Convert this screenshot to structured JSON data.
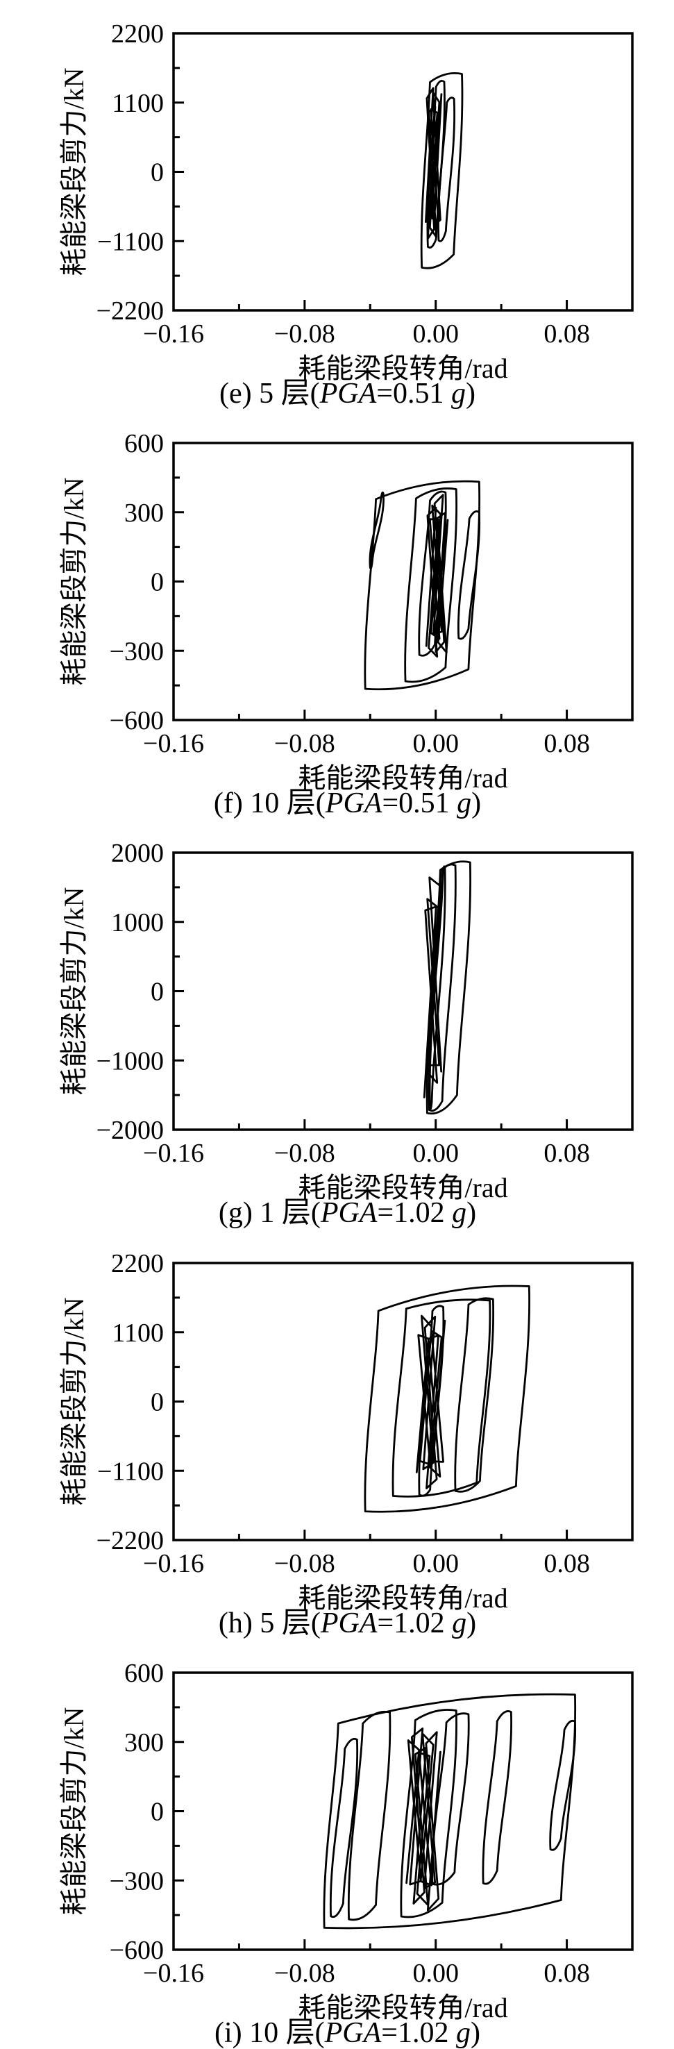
{
  "figure": {
    "bg_color": "#ffffff",
    "ink_color": "#000000",
    "description_note": "五幅耗能梁段滞回曲线图",
    "xlabel_shared": "耗能梁段转角/rad",
    "ylabel_shared": "耗能梁段剪力/kN"
  },
  "chart_data": [
    {
      "id": "e",
      "type": "line",
      "subtype": "hysteresis-loop",
      "panel": "(e)",
      "story": 5,
      "pga_g": 0.51,
      "caption_text": "(e) 5 层(PGA=0.51 g)",
      "caption_parts": [
        {
          "t": "(e) 5 层(",
          "i": false
        },
        {
          "t": "PGA",
          "i": true
        },
        {
          "t": "=0.51 ",
          "i": false
        },
        {
          "t": "g",
          "i": true
        },
        {
          "t": ")",
          "i": false
        }
      ],
      "xlabel": "耗能梁段转角/rad",
      "ylabel": "耗能梁段剪力/kN",
      "xlim": [
        -0.16,
        0.12
      ],
      "x_ticks": [
        -0.16,
        -0.08,
        0.0,
        0.08
      ],
      "x_tick_labels": [
        "−0.16",
        "−0.08",
        "0.00",
        "0.08"
      ],
      "x_minor_step": 0.04,
      "ylim": [
        -2200,
        2200
      ],
      "y_ticks": [
        2200,
        1100,
        0,
        -1100,
        -2200
      ],
      "y_tick_labels": [
        "2200",
        "1100",
        "0",
        "−1100",
        "−2200"
      ],
      "y_minor_step": 550,
      "grid": false,
      "legend": null,
      "line_color": "#000000",
      "loop_x_range": [
        -0.01,
        0.016
      ],
      "peak_shear_kN": {
        "max": 1555,
        "min": -1520
      },
      "lean": 0.005,
      "loops": [
        {
          "x0": -0.0085,
          "x1": 0.016,
          "yt": 1555,
          "yb": -1520,
          "dl": 130,
          "br": 210
        },
        {
          "x0": -0.0048,
          "x1": 0.0052,
          "yt": 1430,
          "yb": -1190,
          "dl": 80,
          "br": 120
        },
        {
          "x0": 0.0018,
          "x1": 0.0112,
          "yt": 1160,
          "yb": -1090,
          "dl": 60,
          "br": 150
        }
      ],
      "scribble": {
        "cx": -0.0013,
        "w": 0.005,
        "yt": 1330,
        "yb": -1130,
        "n": 9
      }
    },
    {
      "id": "f",
      "type": "line",
      "subtype": "hysteresis-loop",
      "panel": "(f)",
      "story": 10,
      "pga_g": 0.51,
      "caption_text": "(f) 10 层(PGA=0.51 g)",
      "caption_parts": [
        {
          "t": "(f) 10 层(",
          "i": false
        },
        {
          "t": "PGA",
          "i": true
        },
        {
          "t": "=0.51 ",
          "i": false
        },
        {
          "t": "g",
          "i": true
        },
        {
          "t": ")",
          "i": false
        }
      ],
      "xlabel": "耗能梁段转角/rad",
      "ylabel": "耗能梁段剪力/kN",
      "xlim": [
        -0.16,
        0.12
      ],
      "x_ticks": [
        -0.16,
        -0.08,
        0.0,
        0.08
      ],
      "x_tick_labels": [
        "−0.16",
        "−0.08",
        "0.00",
        "0.08"
      ],
      "x_minor_step": 0.04,
      "ylim": [
        -600,
        600
      ],
      "y_ticks": [
        600,
        300,
        0,
        -300,
        -600
      ],
      "y_tick_labels": [
        "600",
        "300",
        "0",
        "−300",
        "−600"
      ],
      "y_minor_step": 150,
      "grid": false,
      "legend": null,
      "line_color": "#000000",
      "loop_x_range": [
        -0.043,
        0.027
      ],
      "peak_shear_kN": {
        "max": 432,
        "min": -465
      },
      "lean": 0.0065,
      "loops": [
        {
          "x0": -0.043,
          "x1": 0.0265,
          "yt": 432,
          "yb": -465,
          "dl": 75,
          "br": 85
        },
        {
          "x0": -0.04,
          "x1": -0.032,
          "yt": 382,
          "yb": 60,
          "dl": 30,
          "br": 40
        },
        {
          "x0": -0.0185,
          "x1": 0.0125,
          "yt": 400,
          "yb": -432,
          "dl": 40,
          "br": 60
        },
        {
          "x0": -0.01,
          "x1": 0.006,
          "yt": 386,
          "yb": -318,
          "dl": 35,
          "br": 45
        },
        {
          "x0": 0.014,
          "x1": 0.0265,
          "yt": 300,
          "yb": -245,
          "dl": 28,
          "br": 40
        }
      ],
      "scribble": {
        "cx": 0.0008,
        "w": 0.0072,
        "yt": 380,
        "yb": -330,
        "n": 11
      }
    },
    {
      "id": "g",
      "type": "line",
      "subtype": "hysteresis-loop",
      "panel": "(g)",
      "story": 1,
      "pga_g": 1.02,
      "caption_text": "(g) 1 层(PGA=1.02 g)",
      "caption_parts": [
        {
          "t": "(g) 1 层(",
          "i": false
        },
        {
          "t": "PGA",
          "i": true
        },
        {
          "t": "=1.02 ",
          "i": false
        },
        {
          "t": "g",
          "i": true
        },
        {
          "t": ")",
          "i": false
        }
      ],
      "xlabel": "耗能梁段转角/rad",
      "ylabel": "耗能梁段剪力/kN",
      "xlim": [
        -0.16,
        0.12
      ],
      "x_ticks": [
        -0.16,
        -0.08,
        0.0,
        0.08
      ],
      "x_tick_labels": [
        "−0.16",
        "−0.08",
        "0.00",
        "0.08"
      ],
      "x_minor_step": 0.04,
      "ylim": [
        -2000,
        2000
      ],
      "y_ticks": [
        2000,
        1000,
        0,
        -1000,
        -2000
      ],
      "y_tick_labels": [
        "2000",
        "1000",
        "0",
        "−1000",
        "−2000"
      ],
      "y_minor_step": 500,
      "grid": false,
      "legend": null,
      "line_color": "#000000",
      "loop_x_range": [
        -0.005,
        0.021
      ],
      "peak_shear_kN": {
        "max": 1860,
        "min": -1760
      },
      "lean": 0.008,
      "loops": [
        {
          "x0": -0.0052,
          "x1": 0.021,
          "yt": 1860,
          "yb": -1760,
          "dl": 110,
          "br": 260
        },
        {
          "x0": -0.004,
          "x1": 0.012,
          "yt": 1815,
          "yb": -1715,
          "dl": 70,
          "br": 130
        },
        {
          "x0": -0.0035,
          "x1": 0.0056,
          "yt": 1785,
          "yb": -1685,
          "dl": 55,
          "br": 85
        }
      ],
      "scribble": {
        "cx": -0.0018,
        "w": 0.0032,
        "yt": 1690,
        "yb": -1580,
        "n": 6
      }
    },
    {
      "id": "h",
      "type": "line",
      "subtype": "hysteresis-loop",
      "panel": "(h)",
      "story": 5,
      "pga_g": 1.02,
      "caption_text": "(h) 5 层(PGA=1.02 g)",
      "caption_parts": [
        {
          "t": "(h) 5 层(",
          "i": false
        },
        {
          "t": "PGA",
          "i": true
        },
        {
          "t": "=1.02 ",
          "i": false
        },
        {
          "t": "g",
          "i": true
        },
        {
          "t": ")",
          "i": false
        }
      ],
      "xlabel": "耗能梁段转角/rad",
      "ylabel": "耗能梁段剪力/kN",
      "xlim": [
        -0.16,
        0.12
      ],
      "x_ticks": [
        -0.16,
        -0.08,
        0.0,
        0.08
      ],
      "x_tick_labels": [
        "−0.16",
        "−0.08",
        "0.00",
        "0.08"
      ],
      "x_minor_step": 0.04,
      "ylim": [
        -2200,
        2200
      ],
      "y_ticks": [
        2200,
        1100,
        0,
        -1100,
        -2200
      ],
      "y_tick_labels": [
        "2200",
        "1100",
        "0",
        "−1100",
        "−2200"
      ],
      "y_minor_step": 550,
      "grid": false,
      "legend": null,
      "line_color": "#000000",
      "loop_x_range": [
        -0.043,
        0.057
      ],
      "peak_shear_kN": {
        "max": 1830,
        "min": -1745
      },
      "lean": 0.008,
      "loops": [
        {
          "x0": -0.043,
          "x1": 0.057,
          "yt": 1830,
          "yb": -1745,
          "dl": 390,
          "br": 400
        },
        {
          "x0": -0.026,
          "x1": 0.033,
          "yt": 1605,
          "yb": -1500,
          "dl": 130,
          "br": 210
        },
        {
          "x0": -0.01,
          "x1": 0.0046,
          "yt": 1500,
          "yb": -1480,
          "dl": 60,
          "br": 80
        },
        {
          "x0": 0.012,
          "x1": 0.035,
          "yt": 1625,
          "yb": -1420,
          "dl": 85,
          "br": 160
        }
      ],
      "scribble": {
        "cx": -0.003,
        "w": 0.01,
        "yt": 1450,
        "yb": -1400,
        "n": 11
      }
    },
    {
      "id": "i",
      "type": "line",
      "subtype": "hysteresis-loop",
      "panel": "(i)",
      "story": 10,
      "pga_g": 1.02,
      "caption_text": "(i) 10 层(PGA=1.02 g)",
      "caption_parts": [
        {
          "t": "(i) 10 层(",
          "i": false
        },
        {
          "t": "PGA",
          "i": true
        },
        {
          "t": "=1.02 ",
          "i": false
        },
        {
          "t": "g",
          "i": true
        },
        {
          "t": ")",
          "i": false
        }
      ],
      "xlabel": "耗能梁段转角/rad",
      "ylabel": "耗能梁段剪力/kN",
      "xlim": [
        -0.16,
        0.12
      ],
      "x_ticks": [
        -0.16,
        -0.08,
        0.0,
        0.08
      ],
      "x_tick_labels": [
        "−0.16",
        "−0.08",
        "0.00",
        "0.08"
      ],
      "x_minor_step": 0.04,
      "ylim": [
        -600,
        600
      ],
      "y_ticks": [
        600,
        300,
        0,
        -300,
        -600
      ],
      "y_tick_labels": [
        "600",
        "300",
        "0",
        "−300",
        "−600"
      ],
      "y_minor_step": 150,
      "grid": false,
      "legend": null,
      "line_color": "#000000",
      "loop_x_range": [
        -0.068,
        0.085
      ],
      "peak_shear_kN": {
        "max": 505,
        "min": -505
      },
      "lean": 0.0085,
      "loops": [
        {
          "x0": -0.068,
          "x1": 0.085,
          "yt": 505,
          "yb": -505,
          "dl": 125,
          "br": 120
        },
        {
          "x0": -0.064,
          "x1": -0.048,
          "yt": 310,
          "yb": -455,
          "dl": 40,
          "br": 55
        },
        {
          "x0": -0.053,
          "x1": -0.028,
          "yt": 428,
          "yb": -468,
          "dl": 48,
          "br": 62
        },
        {
          "x0": -0.021,
          "x1": 0.0125,
          "yt": 436,
          "yb": -456,
          "dl": 42,
          "br": 60
        },
        {
          "x0": -0.002,
          "x1": 0.02,
          "yt": 420,
          "yb": -315,
          "dl": 36,
          "br": 50
        },
        {
          "x0": 0.029,
          "x1": 0.046,
          "yt": 430,
          "yb": -312,
          "dl": 40,
          "br": 55
        },
        {
          "x0": 0.07,
          "x1": 0.085,
          "yt": 388,
          "yb": -165,
          "dl": 36,
          "br": 48
        }
      ],
      "scribble": {
        "cx": -0.0075,
        "w": 0.013,
        "yt": 366,
        "yb": -430,
        "n": 13
      }
    }
  ]
}
